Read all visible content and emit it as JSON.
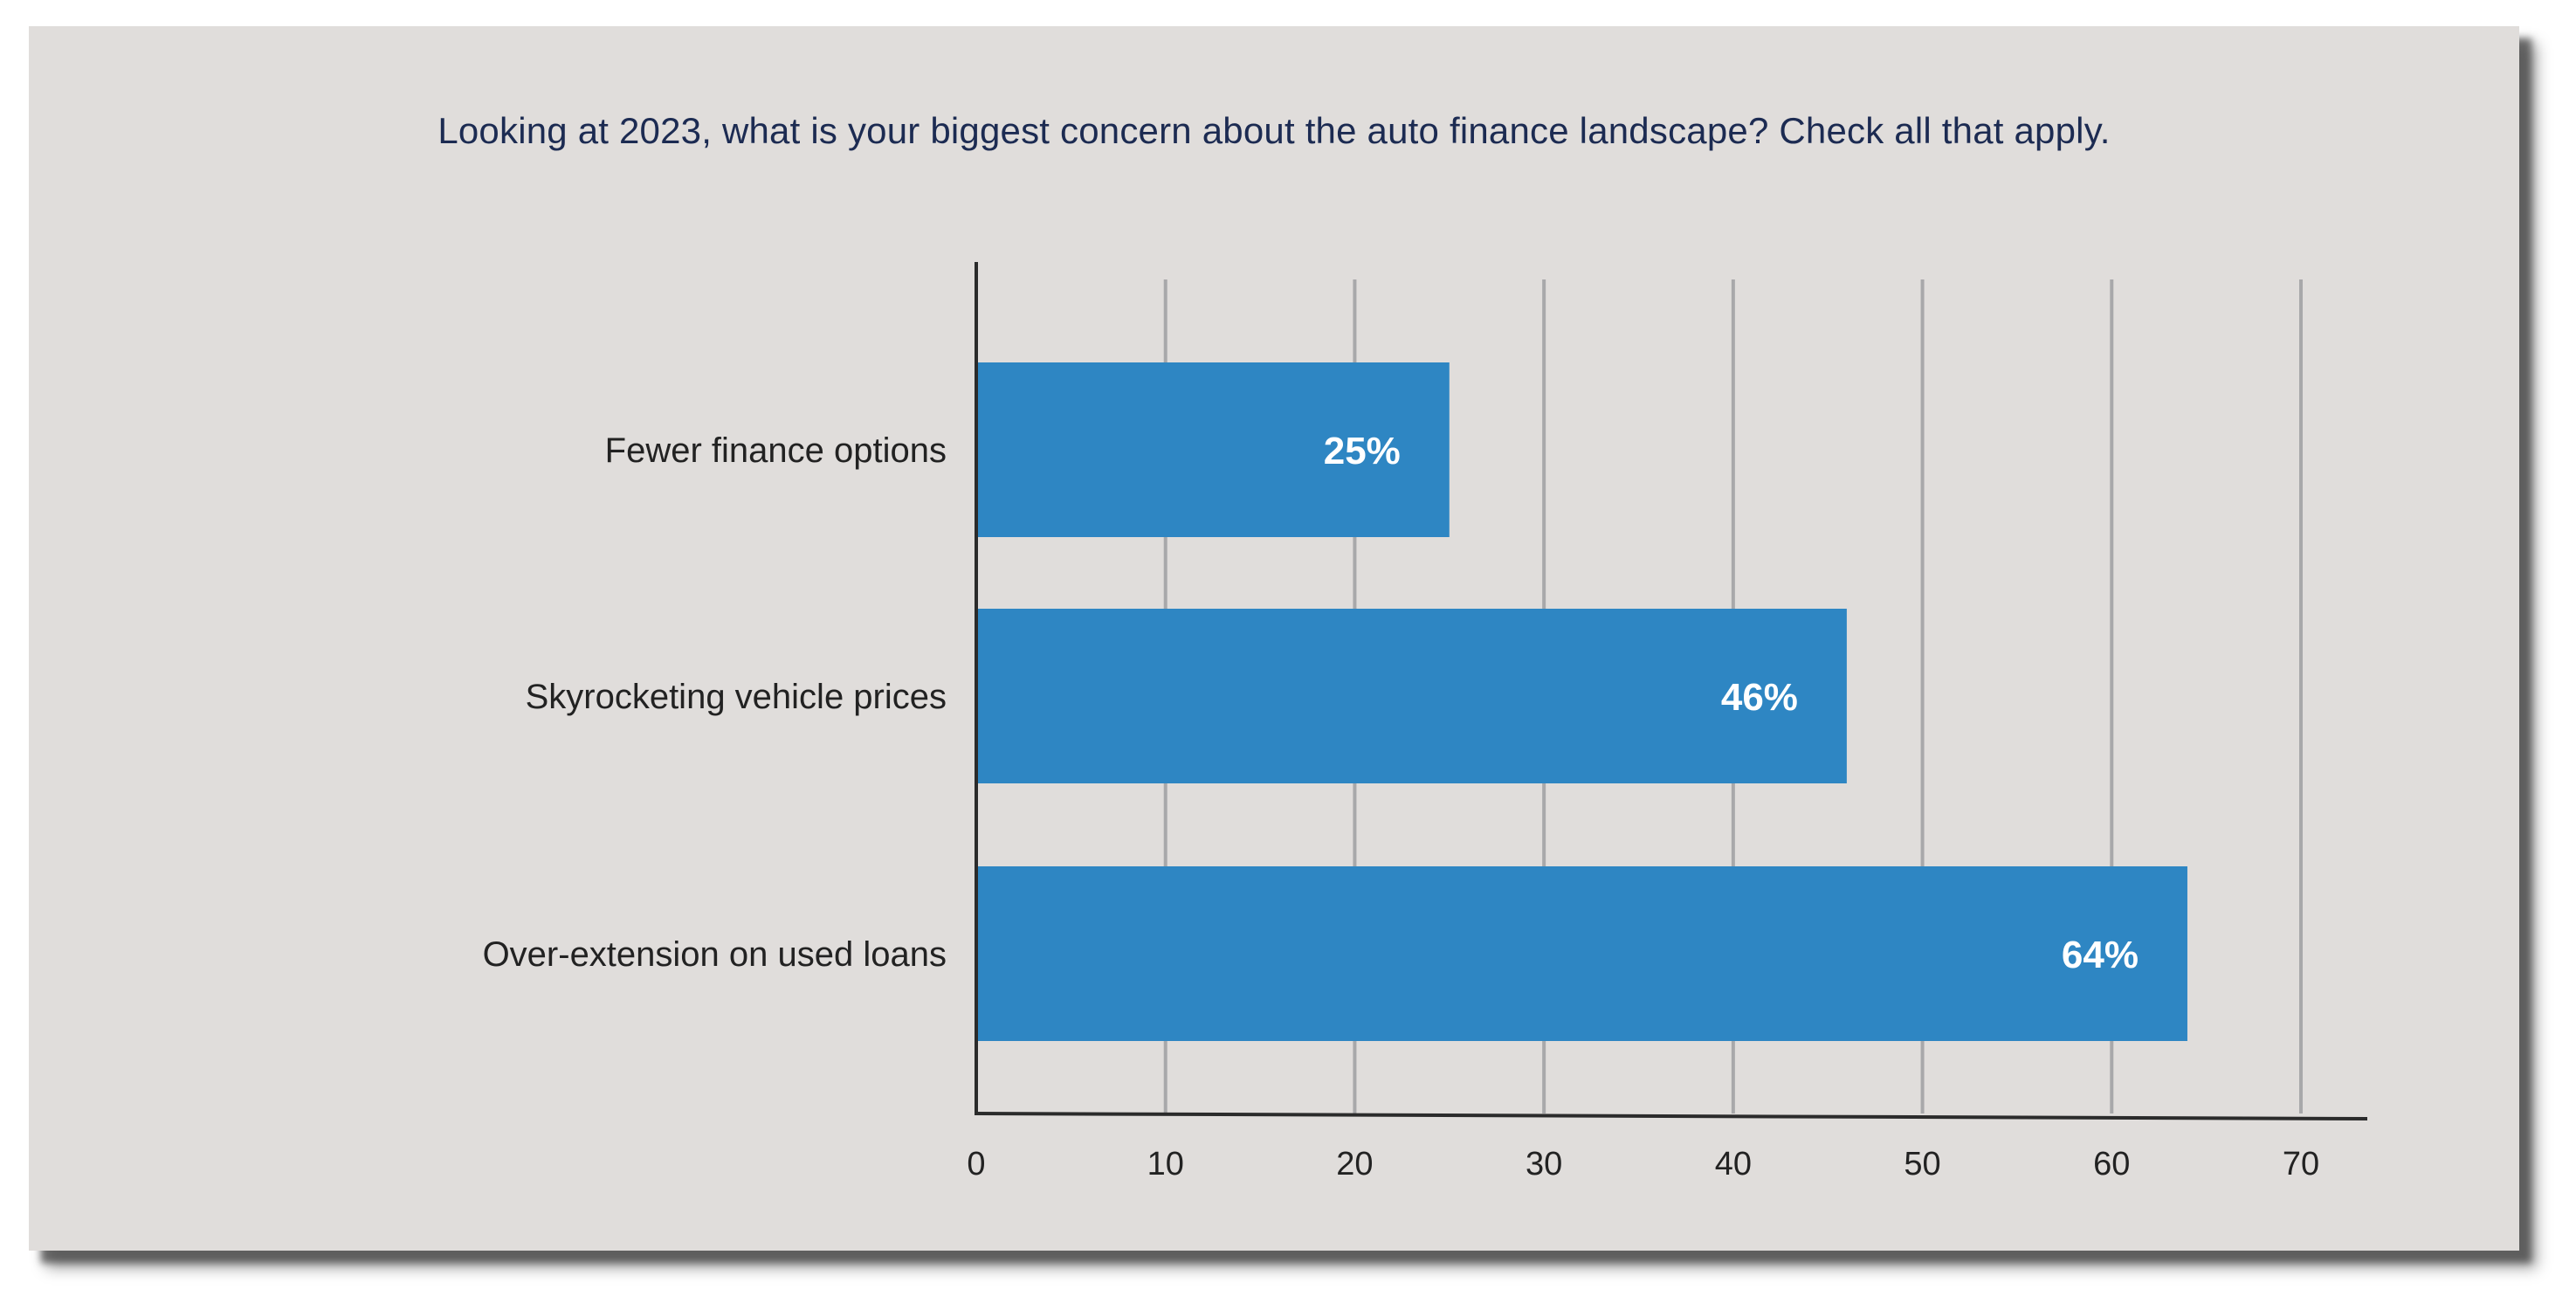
{
  "colors": {
    "background": "#e0dddb",
    "bar": "#2e86c3",
    "bar_label": "#ffffff",
    "title": "#1c2b52",
    "grid": "#a8a8aa",
    "axis": "#2b2b2b",
    "text": "#222222"
  },
  "chart_data": {
    "type": "bar",
    "orientation": "horizontal",
    "title": "Looking at 2023, what is your biggest concern about the auto finance landscape? Check all that apply.",
    "xlabel": "",
    "ylabel": "",
    "categories": [
      "Fewer finance options",
      "Skyrocketing vehicle prices",
      "Over-extension on used loans"
    ],
    "values": [
      25,
      46,
      64
    ],
    "value_labels": [
      "25%",
      "46%",
      "64%"
    ],
    "xlim": [
      0,
      70
    ],
    "xticks": [
      "0",
      "10",
      "20",
      "30",
      "40",
      "50",
      "60",
      "70"
    ],
    "grid": true,
    "legend": "none"
  }
}
